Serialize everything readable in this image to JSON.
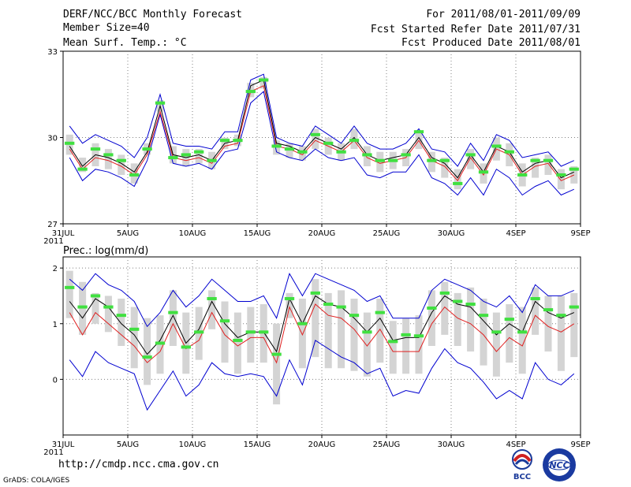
{
  "header": {
    "title": "DERF/NCC/BCC Monthly Forecast",
    "member_size": "Member Size=40",
    "variable": "Mean Surf. Temp.: °C",
    "period": "For 2011/08/01-2011/09/09",
    "started": "Fcst Started Refer Date 2011/07/31",
    "produced": "Fcst Produced Date 2011/08/01"
  },
  "footer": {
    "url": "http://cmdp.ncc.cma.gov.cn",
    "credit": "GrADS: COLA/IGES",
    "logo_bcc": "BCC",
    "logo_ncc": "NCC"
  },
  "colors": {
    "ens_mean": "#000000",
    "spread": "#0000d0",
    "alt": "#e02020",
    "box": "#d4d4d4",
    "marker": "#40e040",
    "grid": "#808080"
  },
  "chart_data": [
    {
      "type": "line",
      "title": "Mean Surf. Temp.: °C",
      "x_ticks": [
        "31JUL",
        "5AUG",
        "10AUG",
        "15AUG",
        "20AUG",
        "25AUG",
        "30AUG",
        "4SEP",
        "9SEP"
      ],
      "x_year": "2011",
      "y_ticks": [
        "27",
        "30",
        "33"
      ],
      "ylim": [
        27,
        33
      ],
      "days": [
        1,
        2,
        3,
        4,
        5,
        6,
        7,
        8,
        9,
        10,
        11,
        12,
        13,
        14,
        15,
        16,
        17,
        18,
        19,
        20,
        21,
        22,
        23,
        24,
        25,
        26,
        27,
        28,
        29,
        30,
        31,
        32,
        33,
        34,
        35,
        36,
        37,
        38,
        39,
        40
      ],
      "series": [
        {
          "name": "ensemble mean",
          "color": "black",
          "values": [
            29.7,
            29.0,
            29.4,
            29.3,
            29.1,
            28.8,
            29.5,
            31.1,
            29.4,
            29.3,
            29.4,
            29.2,
            29.8,
            29.9,
            31.8,
            32.0,
            29.8,
            29.7,
            29.5,
            30.0,
            29.8,
            29.6,
            30.0,
            29.4,
            29.2,
            29.3,
            29.4,
            30.0,
            29.3,
            29.1,
            28.6,
            29.4,
            28.8,
            29.7,
            29.5,
            28.8,
            29.1,
            29.2,
            28.6,
            28.8
          ]
        },
        {
          "name": "member alt",
          "color": "red",
          "values": [
            29.6,
            28.9,
            29.3,
            29.2,
            29.0,
            28.7,
            29.4,
            30.9,
            29.3,
            29.2,
            29.3,
            29.1,
            29.7,
            29.8,
            31.6,
            31.8,
            29.7,
            29.6,
            29.4,
            29.9,
            29.7,
            29.5,
            29.9,
            29.3,
            29.1,
            29.2,
            29.3,
            29.9,
            29.2,
            29.0,
            28.5,
            29.3,
            28.7,
            29.6,
            29.4,
            28.7,
            29.0,
            29.1,
            28.5,
            28.7
          ]
        },
        {
          "name": "spread upper",
          "color": "blue",
          "values": [
            30.4,
            29.8,
            30.1,
            29.9,
            29.7,
            29.3,
            30.0,
            31.5,
            29.8,
            29.7,
            29.7,
            29.6,
            30.2,
            30.2,
            32.0,
            32.2,
            30.0,
            29.8,
            29.7,
            30.4,
            30.1,
            29.8,
            30.4,
            29.8,
            29.6,
            29.6,
            29.8,
            30.3,
            29.6,
            29.5,
            29.0,
            29.8,
            29.2,
            30.1,
            29.9,
            29.3,
            29.4,
            29.5,
            29.0,
            29.2
          ]
        },
        {
          "name": "spread lower",
          "color": "blue",
          "values": [
            29.3,
            28.5,
            28.9,
            28.8,
            28.6,
            28.3,
            29.2,
            30.8,
            29.1,
            29.0,
            29.1,
            28.9,
            29.5,
            29.6,
            31.2,
            31.6,
            29.5,
            29.3,
            29.2,
            29.6,
            29.3,
            29.2,
            29.3,
            28.7,
            28.6,
            28.8,
            28.8,
            29.4,
            28.6,
            28.4,
            28.0,
            28.6,
            28.0,
            28.9,
            28.6,
            28.0,
            28.3,
            28.5,
            28.0,
            28.2
          ]
        }
      ],
      "markers": [
        29.8,
        28.9,
        29.6,
        29.4,
        29.2,
        28.7,
        29.6,
        31.2,
        29.3,
        29.4,
        29.5,
        29.2,
        29.9,
        29.9,
        31.6,
        32.0,
        29.7,
        29.6,
        29.5,
        30.1,
        29.8,
        29.5,
        29.9,
        29.4,
        29.2,
        29.2,
        29.4,
        30.2,
        29.2,
        29.2,
        28.4,
        29.4,
        28.8,
        29.7,
        29.5,
        28.7,
        29.2,
        29.2,
        28.7,
        28.9
      ],
      "box_low": [
        29.4,
        28.8,
        29.0,
        28.9,
        28.7,
        28.4,
        29.4,
        30.9,
        29.1,
        29.0,
        29.1,
        28.9,
        29.6,
        29.7,
        31.4,
        31.7,
        29.4,
        29.3,
        29.2,
        29.6,
        29.4,
        29.2,
        29.6,
        29.0,
        28.8,
        28.9,
        29.0,
        29.6,
        28.8,
        28.6,
        28.2,
        28.9,
        28.4,
        29.2,
        29.0,
        28.3,
        28.6,
        28.7,
        28.2,
        28.4
      ],
      "box_high": [
        30.1,
        29.3,
        29.8,
        29.6,
        29.4,
        29.1,
        29.8,
        31.3,
        29.7,
        29.6,
        29.6,
        29.5,
        30.0,
        30.1,
        31.9,
        32.1,
        29.9,
        29.8,
        29.7,
        30.3,
        30.0,
        29.8,
        30.3,
        29.7,
        29.5,
        29.5,
        29.6,
        30.2,
        29.5,
        29.3,
        28.9,
        29.6,
        29.1,
        30.0,
        29.8,
        29.1,
        29.3,
        29.4,
        28.9,
        29.0
      ]
    },
    {
      "type": "line",
      "title": "Prec.: log(mm/d)",
      "x_ticks": [
        "31JUL",
        "5AUG",
        "10AUG",
        "15AUG",
        "20AUG",
        "25AUG",
        "30AUG",
        "4SEP",
        "9SEP"
      ],
      "x_year": "2011",
      "y_ticks": [
        "0",
        "1",
        "2"
      ],
      "ylim": [
        -1,
        2.2
      ],
      "days": [
        1,
        2,
        3,
        4,
        5,
        6,
        7,
        8,
        9,
        10,
        11,
        12,
        13,
        14,
        15,
        16,
        17,
        18,
        19,
        20,
        21,
        22,
        23,
        24,
        25,
        26,
        27,
        28,
        29,
        30,
        31,
        32,
        33,
        34,
        35,
        36,
        37,
        38,
        39,
        40
      ],
      "series": [
        {
          "name": "ensemble mean",
          "color": "black",
          "values": [
            1.4,
            1.1,
            1.45,
            1.3,
            1.0,
            0.8,
            0.45,
            0.7,
            1.15,
            0.65,
            0.9,
            1.4,
            1.0,
            0.75,
            0.85,
            0.85,
            0.5,
            1.45,
            1.0,
            1.5,
            1.35,
            1.3,
            1.1,
            0.85,
            1.1,
            0.7,
            0.75,
            0.75,
            1.2,
            1.5,
            1.35,
            1.3,
            1.05,
            0.8,
            1.0,
            0.85,
            1.4,
            1.2,
            1.1,
            1.2
          ]
        },
        {
          "name": "member alt",
          "color": "red",
          "values": [
            1.2,
            0.8,
            1.2,
            1.0,
            0.8,
            0.6,
            0.3,
            0.5,
            1.0,
            0.55,
            0.7,
            1.2,
            0.8,
            0.6,
            0.75,
            0.75,
            0.3,
            1.3,
            0.8,
            1.35,
            1.15,
            1.1,
            0.9,
            0.6,
            0.9,
            0.5,
            0.5,
            0.5,
            1.0,
            1.3,
            1.1,
            1.0,
            0.8,
            0.5,
            0.75,
            0.6,
            1.15,
            0.95,
            0.85,
            1.0
          ]
        },
        {
          "name": "spread upper",
          "color": "blue",
          "values": [
            1.8,
            1.6,
            1.9,
            1.7,
            1.6,
            1.4,
            0.95,
            1.2,
            1.6,
            1.3,
            1.5,
            1.8,
            1.6,
            1.4,
            1.4,
            1.5,
            1.1,
            1.9,
            1.5,
            1.9,
            1.8,
            1.7,
            1.6,
            1.4,
            1.5,
            1.1,
            1.1,
            1.1,
            1.6,
            1.8,
            1.7,
            1.6,
            1.4,
            1.3,
            1.5,
            1.2,
            1.7,
            1.5,
            1.5,
            1.6
          ]
        },
        {
          "name": "spread lower",
          "color": "blue",
          "values": [
            0.35,
            0.05,
            0.5,
            0.3,
            0.2,
            0.1,
            -0.55,
            -0.2,
            0.15,
            -0.3,
            -0.1,
            0.3,
            0.1,
            0.05,
            0.1,
            0.05,
            -0.3,
            0.35,
            -0.1,
            0.7,
            0.55,
            0.4,
            0.3,
            0.1,
            0.2,
            -0.3,
            -0.2,
            -0.25,
            0.2,
            0.55,
            0.3,
            0.2,
            -0.05,
            -0.35,
            -0.2,
            -0.35,
            0.3,
            0.0,
            -0.1,
            0.1
          ]
        }
      ],
      "markers": [
        1.65,
        1.3,
        1.5,
        1.3,
        1.15,
        0.9,
        0.4,
        0.65,
        1.2,
        0.58,
        0.85,
        1.45,
        1.05,
        0.7,
        0.85,
        0.85,
        0.45,
        1.45,
        1.0,
        1.55,
        1.35,
        1.3,
        1.15,
        0.85,
        1.2,
        0.68,
        0.8,
        0.78,
        1.28,
        1.55,
        1.4,
        1.35,
        1.15,
        0.85,
        1.08,
        0.85,
        1.45,
        1.25,
        1.15,
        1.3
      ],
      "box_low": [
        1.1,
        0.8,
        1.0,
        0.85,
        0.6,
        0.2,
        -0.1,
        0.1,
        0.6,
        0.1,
        0.35,
        0.9,
        0.3,
        0.1,
        0.3,
        0.3,
        -0.45,
        1.1,
        0.2,
        0.4,
        0.2,
        0.2,
        0.15,
        0.05,
        0.3,
        0.1,
        0.1,
        0.1,
        0.6,
        0.8,
        0.6,
        0.5,
        0.25,
        0.05,
        0.3,
        0.1,
        0.8,
        0.5,
        0.15,
        0.4
      ],
      "box_high": [
        1.95,
        1.75,
        1.55,
        1.5,
        1.45,
        1.3,
        1.1,
        1.15,
        1.6,
        1.2,
        1.3,
        1.6,
        1.4,
        1.2,
        1.3,
        1.35,
        1.0,
        1.55,
        1.45,
        1.8,
        1.55,
        1.6,
        1.45,
        1.2,
        1.45,
        1.05,
        1.1,
        1.15,
        1.6,
        1.75,
        1.55,
        1.65,
        1.45,
        1.2,
        1.35,
        1.3,
        1.65,
        1.5,
        1.5,
        1.55
      ]
    }
  ]
}
